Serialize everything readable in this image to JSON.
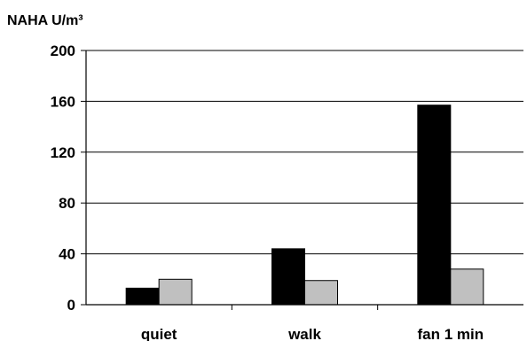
{
  "chart_data": {
    "type": "bar",
    "title": "",
    "xlabel": "",
    "ylabel": "NAHA U/m³",
    "categories": [
      "quiet",
      "walk",
      "fan 1 min"
    ],
    "series": [
      {
        "values": [
          13,
          44,
          157
        ],
        "color": "#000000"
      },
      {
        "values": [
          20,
          19,
          28
        ],
        "color": "#c0c0c0"
      }
    ],
    "ylim": [
      0,
      200
    ],
    "yticks": [
      "0",
      "40",
      "80",
      "120",
      "160",
      "200"
    ],
    "grid": true
  }
}
